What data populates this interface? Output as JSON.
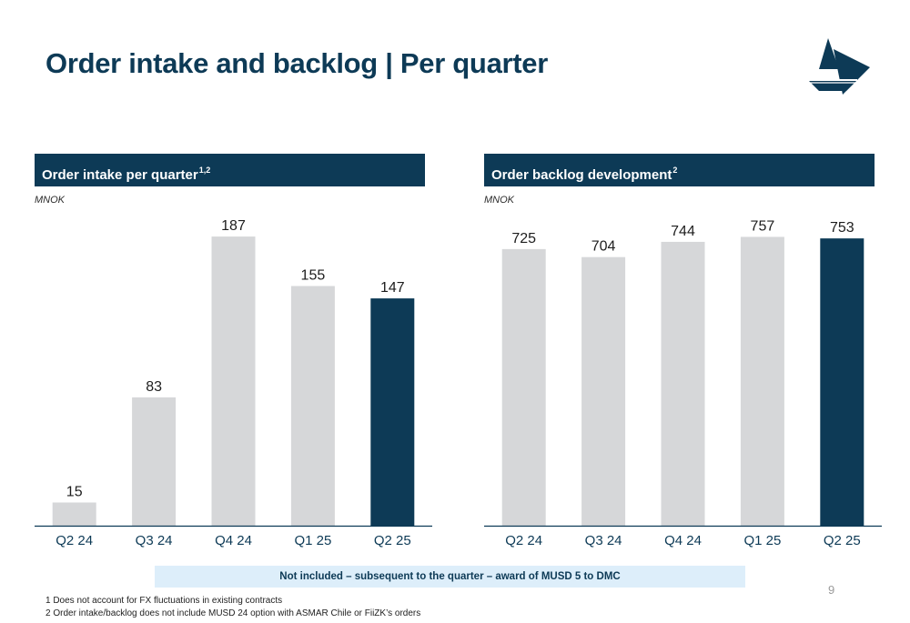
{
  "title": "Order intake and backlog | Per quarter",
  "left_panel": {
    "header": "Order intake per quarter",
    "header_sup": "1,2",
    "unit": "MNOK"
  },
  "right_panel": {
    "header": "Order backlog development",
    "header_sup": "2",
    "unit": "MNOK"
  },
  "note": "Not included – subsequent to the quarter – award of MUSD 5 to DMC",
  "page_number": "9",
  "footnotes": [
    "1 Does not account for FX fluctuations in existing contracts",
    "2 Order intake/backlog does not include MUSD 24 option with ASMAR Chile or FiiZK’s orders"
  ],
  "colors": {
    "navy": "#0d3a56",
    "grey_bar": "#d6d7d9",
    "highlight_bar": "#0d3a56",
    "note_bg": "#ddeefa"
  },
  "chart_data": [
    {
      "type": "bar",
      "title": "Order intake per quarter",
      "ylabel": "MNOK",
      "categories": [
        "Q2 24",
        "Q3 24",
        "Q4 24",
        "Q1 25",
        "Q2 25"
      ],
      "values": [
        15,
        83,
        187,
        155,
        147
      ],
      "highlight_index": 4,
      "ylim": [
        0,
        190
      ],
      "grid": false,
      "legend": "none"
    },
    {
      "type": "bar",
      "title": "Order backlog development",
      "ylabel": "MNOK",
      "categories": [
        "Q2 24",
        "Q3 24",
        "Q4 24",
        "Q1 25",
        "Q2 25"
      ],
      "values": [
        725,
        704,
        744,
        757,
        753
      ],
      "highlight_index": 4,
      "ylim": [
        0,
        770
      ],
      "grid": false,
      "legend": "none"
    }
  ]
}
